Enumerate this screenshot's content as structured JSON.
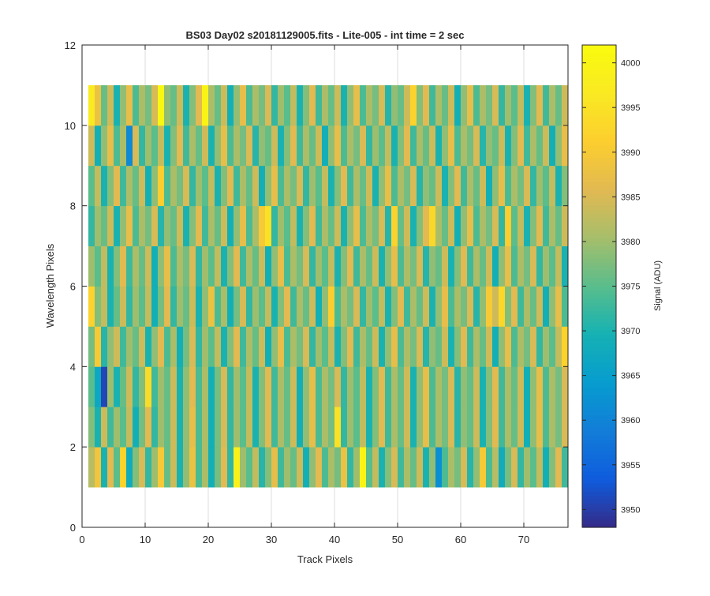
{
  "chart_data": {
    "type": "heatmap",
    "title": "BS03 Day02  s20181129005.fits - Lite-005 - int time = 2 sec",
    "xlabel": "Track Pixels",
    "ylabel": "Wavelength Pixels",
    "xlim": [
      0,
      77
    ],
    "ylim": [
      0,
      12
    ],
    "x_ticks": [
      "0",
      "10",
      "20",
      "30",
      "40",
      "50",
      "60",
      "70"
    ],
    "y_ticks": [
      "0",
      "2",
      "4",
      "6",
      "8",
      "10",
      "12"
    ],
    "grid": true,
    "colormap": "parula",
    "colorbar": {
      "label": "Signal (ADU)",
      "range": [
        3948,
        4002
      ],
      "ticks": [
        "3950",
        "3955",
        "3960",
        "3965",
        "3970",
        "3975",
        "3980",
        "3985",
        "3990",
        "3995",
        "4000"
      ]
    },
    "cells": {
      "x_start": 1,
      "x_end": 77,
      "y_start": 1,
      "y_end": 11,
      "columns": 76,
      "rows": 10,
      "row_values_bottom_to_top": [
        [
          3982,
          3989,
          3970,
          3986,
          3975,
          3992,
          3968,
          3978,
          3985,
          3972,
          3980,
          3990,
          3976,
          3984,
          3970,
          3979,
          3988,
          3974,
          3981,
          3969,
          3977,
          3986,
          3972,
          3999,
          3980,
          3975,
          3983,
          3971,
          3978,
          3987,
          3973,
          3980,
          3976,
          3984,
          3969,
          3979,
          3986,
          3974,
          3981,
          3977,
          3988,
          3972,
          3980,
          4000,
          3975,
          3983,
          3970,
          3978,
          3985,
          3973,
          3981,
          3976,
          3984,
          3970,
          3979,
          3962,
          3974,
          3981,
          3977,
          3985,
          3971,
          3979,
          3990,
          3974,
          3982,
          3968,
          3977,
          3985,
          3972,
          3980,
          3975,
          3983,
          3969,
          3978,
          3986,
          3973
        ],
        [
          3978,
          3970,
          3984,
          3973,
          3980,
          3975,
          3983,
          3969,
          3977,
          3986,
          3972,
          3980,
          3976,
          3984,
          3970,
          3979,
          3987,
          3974,
          3981,
          3969,
          3977,
          3985,
          3972,
          3980,
          3975,
          3983,
          3970,
          3978,
          3986,
          3973,
          3981,
          3976,
          3984,
          3969,
          3979,
          3987,
          3974,
          3981,
          3977,
          3995,
          3972,
          3980,
          3975,
          3983,
          3970,
          3978,
          3986,
          3973,
          3981,
          3976,
          3984,
          3970,
          3979,
          3987,
          3974,
          3981,
          3977,
          3985,
          3971,
          3979,
          3976,
          3984,
          3970,
          3978,
          3986,
          3973,
          3981,
          3976,
          3984,
          3969,
          3979,
          3987,
          3974,
          3981,
          3977,
          3985
        ],
        [
          3975,
          3967,
          3951,
          3980,
          3970,
          3976,
          3984,
          3972,
          3978,
          3994,
          3973,
          3980,
          3976,
          3984,
          3970,
          3979,
          3986,
          3974,
          3981,
          3969,
          3977,
          3985,
          3972,
          3980,
          3975,
          3983,
          3970,
          3978,
          3986,
          3973,
          3981,
          3976,
          3984,
          3969,
          3979,
          3987,
          3974,
          3981,
          3977,
          3985,
          3972,
          3980,
          3975,
          3983,
          3970,
          3978,
          3986,
          3973,
          3981,
          3976,
          3984,
          3970,
          3979,
          3987,
          3974,
          3981,
          3977,
          3985,
          3971,
          3979,
          3976,
          3984,
          3970,
          3978,
          3986,
          3973,
          3981,
          3976,
          3984,
          3969,
          3979,
          3987,
          3974,
          3981,
          3977,
          3985
        ],
        [
          3977,
          3990,
          3971,
          3979,
          3984,
          3973,
          3980,
          3976,
          3984,
          3970,
          3979,
          3986,
          3974,
          3981,
          3969,
          3977,
          3985,
          3972,
          3980,
          3975,
          3983,
          3970,
          3978,
          3986,
          3973,
          3981,
          3976,
          3984,
          3969,
          3979,
          3987,
          3974,
          3981,
          3977,
          3985,
          3972,
          3980,
          3975,
          3983,
          3970,
          3978,
          3986,
          3973,
          3981,
          3976,
          3984,
          3970,
          3979,
          3987,
          3974,
          3981,
          3977,
          3985,
          3971,
          3979,
          3976,
          3984,
          3970,
          3978,
          3986,
          3973,
          3981,
          3976,
          3984,
          3969,
          3979,
          3987,
          3974,
          3981,
          3977,
          3985,
          3972,
          3980,
          3975,
          3983,
          3992
        ],
        [
          3992,
          3978,
          3983,
          3970,
          3976,
          3984,
          3972,
          3980,
          3975,
          3983,
          3969,
          3977,
          3986,
          3972,
          3980,
          3976,
          3984,
          3970,
          3979,
          3988,
          3974,
          3981,
          3969,
          3977,
          3985,
          3972,
          3980,
          3975,
          3983,
          3970,
          3978,
          3986,
          3973,
          3981,
          3976,
          3984,
          3969,
          3979,
          3991,
          3974,
          3981,
          3977,
          3985,
          3972,
          3980,
          3975,
          3983,
          3970,
          3978,
          3986,
          3973,
          3981,
          3976,
          3984,
          3970,
          3979,
          3987,
          3974,
          3981,
          3977,
          3985,
          3971,
          3979,
          3990,
          3984,
          3993,
          3978,
          3986,
          3973,
          3981,
          3976,
          3984,
          3969,
          3979,
          3987,
          3974
        ],
        [
          3980,
          3975,
          3983,
          3970,
          3978,
          3986,
          3973,
          3981,
          3976,
          3984,
          3969,
          3979,
          3987,
          3974,
          3981,
          3977,
          3985,
          3972,
          3980,
          3975,
          3983,
          3970,
          3978,
          3986,
          3973,
          3981,
          3976,
          3984,
          3969,
          3979,
          3987,
          3974,
          3981,
          3977,
          3985,
          3972,
          3980,
          3975,
          3983,
          3970,
          3978,
          3986,
          3973,
          3981,
          3976,
          3984,
          3970,
          3979,
          3987,
          3974,
          3981,
          3977,
          3985,
          3971,
          3979,
          3976,
          3984,
          3970,
          3978,
          3986,
          3973,
          3981,
          3976,
          3984,
          3969,
          3979,
          3987,
          3974,
          3981,
          3977,
          3985,
          3972,
          3980,
          3975,
          3983,
          3970
        ],
        [
          3972,
          3980,
          3976,
          3984,
          3970,
          3979,
          3987,
          3974,
          3981,
          3977,
          3985,
          3971,
          3979,
          3976,
          3984,
          3970,
          3978,
          3986,
          3973,
          3981,
          3976,
          3984,
          3969,
          3979,
          3987,
          3974,
          3981,
          3990,
          3995,
          3972,
          3980,
          3975,
          3983,
          3970,
          3978,
          3986,
          3973,
          3981,
          3976,
          3984,
          3970,
          3979,
          3987,
          3974,
          3981,
          3977,
          3985,
          3971,
          3992,
          3976,
          3984,
          3970,
          3978,
          3986,
          3993,
          3981,
          3976,
          3984,
          3969,
          3979,
          3987,
          3974,
          3981,
          3977,
          3985,
          3972,
          3991,
          3975,
          3983,
          3970,
          3978,
          3986,
          3973,
          3981,
          3976,
          3984
        ],
        [
          3975,
          3983,
          3970,
          3978,
          3986,
          3973,
          3981,
          3976,
          3984,
          3969,
          3979,
          3991,
          3974,
          3981,
          3977,
          3985,
          3972,
          3980,
          3975,
          3983,
          3970,
          3978,
          3986,
          3973,
          3981,
          3976,
          3984,
          3969,
          3979,
          3987,
          3974,
          3981,
          3977,
          3985,
          3972,
          3980,
          3975,
          3983,
          3970,
          3978,
          3986,
          3973,
          3981,
          3976,
          3984,
          3970,
          3979,
          3987,
          3974,
          3981,
          3977,
          3985,
          3971,
          3979,
          3976,
          3984,
          3970,
          3978,
          3986,
          3973,
          3981,
          3976,
          3984,
          3969,
          3979,
          3987,
          3974,
          3981,
          3977,
          3985,
          3972,
          3980,
          3975,
          3983,
          3970,
          3978
        ],
        [
          3984,
          3969,
          3979,
          3987,
          3974,
          3981,
          3961,
          3985,
          3972,
          3980,
          3975,
          3983,
          3970,
          3978,
          3986,
          3973,
          3981,
          3976,
          3984,
          3970,
          3979,
          3987,
          3974,
          3981,
          3977,
          3985,
          3971,
          3979,
          3976,
          3984,
          3970,
          3978,
          3986,
          3973,
          3981,
          3976,
          3984,
          3969,
          3979,
          3987,
          3974,
          3981,
          3977,
          3985,
          3972,
          3980,
          3975,
          3983,
          3970,
          3978,
          3986,
          3973,
          3981,
          3976,
          3984,
          3970,
          3979,
          3987,
          3974,
          3981,
          3977,
          3985,
          3971,
          3979,
          3976,
          3984,
          3970,
          3978,
          3986,
          3973,
          3981,
          3976,
          3984,
          3969,
          3979,
          3987
        ],
        [
          3997,
          3988,
          3976,
          3984,
          3970,
          3979,
          3987,
          3974,
          3981,
          3977,
          3985,
          4001,
          3979,
          3976,
          3984,
          3970,
          3978,
          3986,
          4000,
          3981,
          3976,
          3984,
          3969,
          3979,
          3987,
          3974,
          3981,
          3977,
          3985,
          3972,
          3980,
          3975,
          3983,
          3970,
          3978,
          3986,
          3973,
          3981,
          3976,
          3984,
          3970,
          3979,
          3987,
          3974,
          3981,
          3977,
          3985,
          3971,
          3979,
          3976,
          3984,
          3992,
          3978,
          3986,
          3973,
          3981,
          3976,
          3984,
          3969,
          3979,
          3987,
          3974,
          3981,
          3977,
          3985,
          3972,
          3980,
          3975,
          3983,
          3970,
          3978,
          3986,
          3973,
          3981,
          3976,
          3984
        ]
      ]
    }
  }
}
